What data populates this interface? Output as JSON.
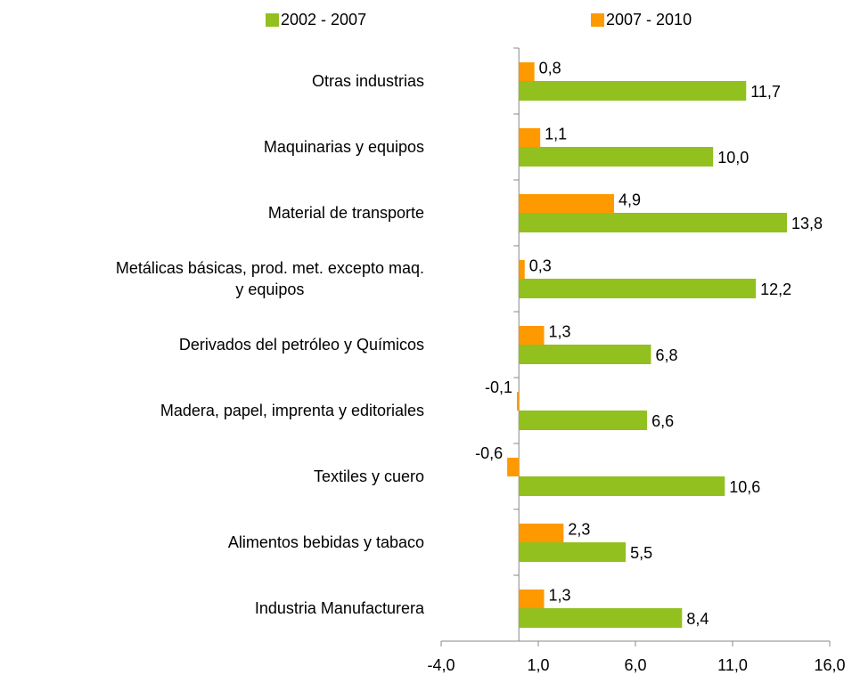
{
  "chart_data": {
    "type": "bar",
    "orientation": "horizontal",
    "categories": [
      "Otras industrias",
      "Maquinarias y equipos",
      "Material de transporte",
      "Metálicas básicas, prod. met. excepto maq.\ny equipos",
      "Derivados del petróleo y Químicos",
      "Madera, papel, imprenta y editoriales",
      "Textiles y cuero",
      "Alimentos bebidas y tabaco",
      "Industria Manufacturera"
    ],
    "series": [
      {
        "name": "2002 - 2007",
        "color": "#92c01f",
        "values": [
          11.7,
          10.0,
          13.8,
          12.2,
          6.8,
          6.6,
          10.6,
          5.5,
          8.4
        ],
        "value_labels": [
          "11,7",
          "10,0",
          "13,8",
          "12,2",
          "6,8",
          "6,6",
          "10,6",
          "5,5",
          "8,4"
        ]
      },
      {
        "name": "2007 - 2010",
        "color": "#ff9900",
        "values": [
          0.8,
          1.1,
          4.9,
          0.3,
          1.3,
          -0.1,
          -0.6,
          2.3,
          1.3
        ],
        "value_labels": [
          "0,8",
          "1,1",
          "4,9",
          "0,3",
          "1,3",
          "-0,1",
          "-0,6",
          "2,3",
          "1,3"
        ]
      }
    ],
    "xlim": [
      -4,
      16
    ],
    "xticks": [
      {
        "value": -4,
        "label": "-4,0"
      },
      {
        "value": 1,
        "label": "1,0"
      },
      {
        "value": 6,
        "label": "6,0"
      },
      {
        "value": 11,
        "label": "11,0"
      },
      {
        "value": 16,
        "label": "16,0"
      }
    ],
    "legend": "top"
  }
}
